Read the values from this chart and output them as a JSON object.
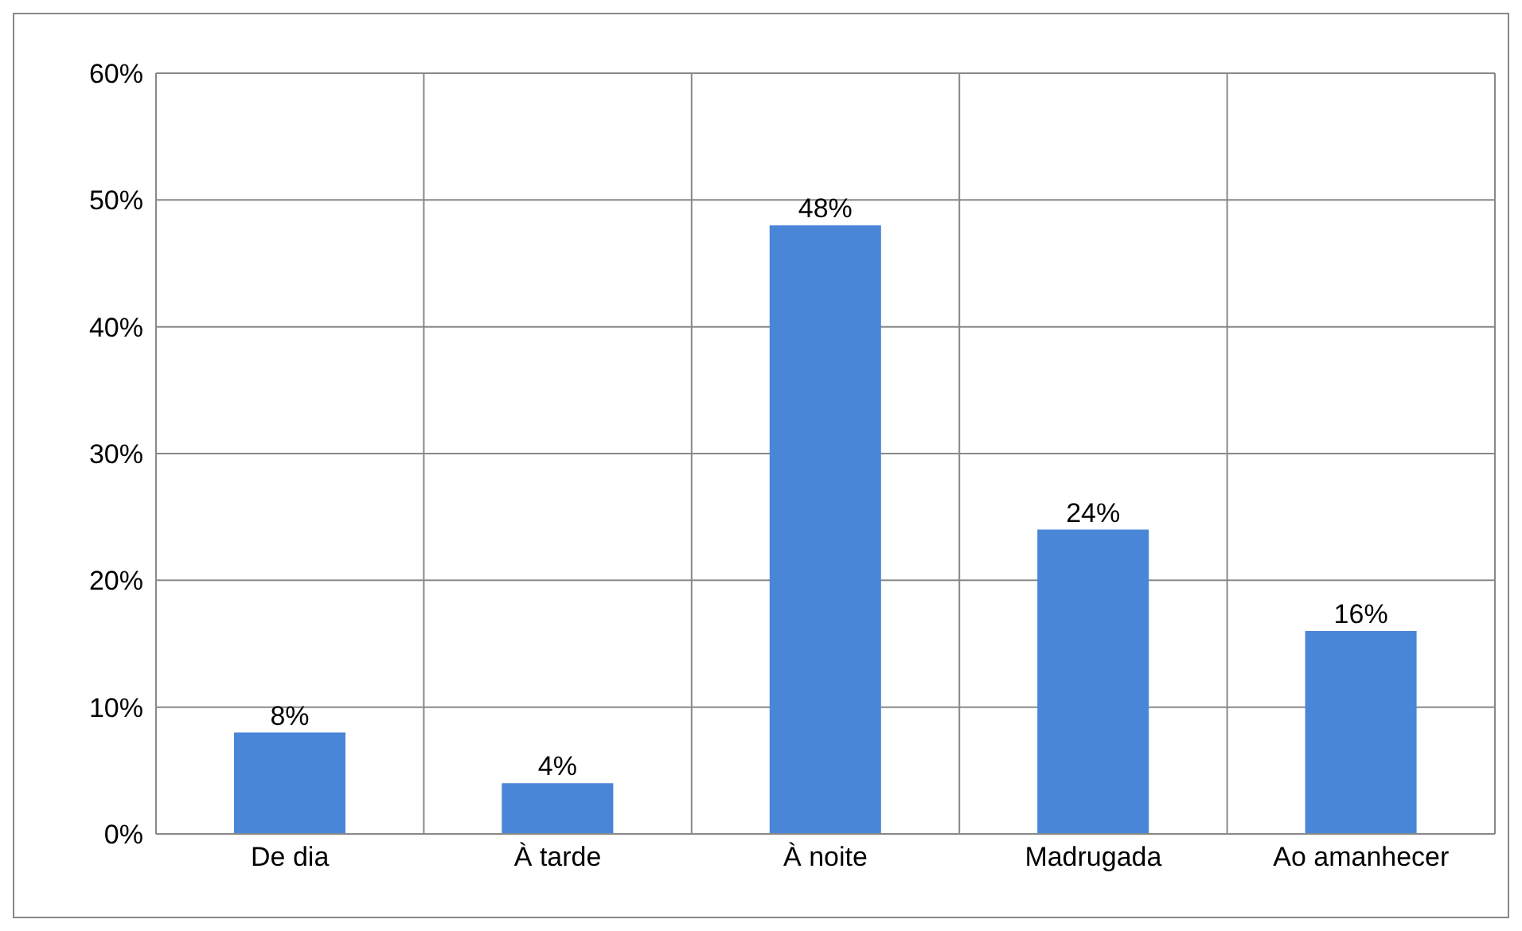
{
  "chart_data": {
    "type": "bar",
    "categories": [
      "De dia",
      "À tarde",
      "À noite",
      "Madrugada",
      "Ao amanhecer"
    ],
    "values": [
      8,
      4,
      48,
      24,
      16
    ],
    "value_labels": [
      "8%",
      "4%",
      "48%",
      "24%",
      "16%"
    ],
    "color": "#4a86d8",
    "ylim": [
      0,
      60
    ],
    "yticks": [
      {
        "value": 0,
        "label": "0%"
      },
      {
        "value": 10,
        "label": "10%"
      },
      {
        "value": 20,
        "label": "20%"
      },
      {
        "value": 30,
        "label": "30%"
      },
      {
        "value": 40,
        "label": "40%"
      },
      {
        "value": 50,
        "label": "50%"
      },
      {
        "value": 60,
        "label": "60%"
      }
    ],
    "grid": true
  }
}
